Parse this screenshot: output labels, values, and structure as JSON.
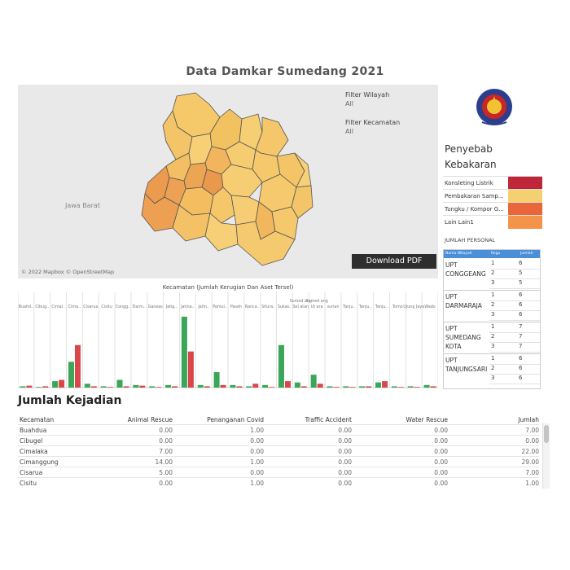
{
  "dashboard": {
    "title": "Data Damkar Sumedang 2021"
  },
  "map": {
    "region_label": "Jawa Barat",
    "attribution": "© 2022 Mapbox © OpenStreetMap",
    "filters": [
      {
        "label": "Filter Wilayah",
        "value": "All"
      },
      {
        "label": "Filter Kecamatan",
        "value": "All"
      }
    ],
    "download_label": "Download PDF"
  },
  "causes": {
    "title": "Penyebab Kebakaran",
    "items": [
      {
        "label": "Konsleting Listrik",
        "color": "#c0263a"
      },
      {
        "label": "Pembakaran Samp...",
        "color": "#f4d070"
      },
      {
        "label": "Tungku / Kompor G...",
        "color": "#e8663a"
      },
      {
        "label": "Lain Lain1",
        "color": "#f4934a"
      }
    ]
  },
  "personal": {
    "title": "JUMLAH PERSONAL",
    "headers": [
      "Nama Wilayah",
      "Regu",
      "Jumlah"
    ],
    "groups": [
      {
        "name": "UPT CONGGEANG",
        "rows": [
          [
            "1",
            "6"
          ],
          [
            "2",
            "5"
          ],
          [
            "3",
            "5"
          ]
        ]
      },
      {
        "name": "UPT DARMARAJA",
        "rows": [
          [
            "1",
            "6"
          ],
          [
            "2",
            "6"
          ],
          [
            "3",
            "6"
          ]
        ]
      },
      {
        "name": "UPT SUMEDANG KOTA",
        "rows": [
          [
            "1",
            "7"
          ],
          [
            "2",
            "7"
          ],
          [
            "3",
            "7"
          ]
        ]
      },
      {
        "name": "UPT TANJUNGSARI",
        "rows": [
          [
            "1",
            "6"
          ],
          [
            "2",
            "6"
          ],
          [
            "3",
            "6"
          ]
        ]
      }
    ]
  },
  "chart_data": {
    "type": "bar",
    "title": "Kecamatan (Jumlah Kerugian Dan Aset Tersel)",
    "categories": [
      "Buahd..",
      "Cibug..",
      "Cimal..",
      "Cima..",
      "Cisarua",
      "Cisitu",
      "Congg..",
      "Darm..",
      "Ganeas",
      "Jatig..",
      "Jatina..",
      "Jatin..",
      "Pamul..",
      "Paseh",
      "Ranca..",
      "Situra..",
      "Sukas..",
      "Sumed ang Sel atan",
      "Sumed ang Ut ara",
      "surian",
      "Tanju..",
      "Tanju..",
      "Tanju..",
      "Tomo",
      "Ujung Jaya",
      "Wado"
    ],
    "series": [
      {
        "color": "#3aa657",
        "values": [
          1,
          0.5,
          5,
          20,
          3,
          1,
          6,
          2,
          1,
          2,
          55,
          2,
          12,
          2,
          1,
          2,
          33,
          4,
          10,
          1,
          1,
          1,
          4,
          1,
          1,
          2
        ]
      },
      {
        "color": "#d9474a",
        "values": [
          1.5,
          1,
          6,
          33,
          1,
          0.5,
          1,
          1.5,
          0.5,
          1,
          28,
          1,
          2,
          1,
          3,
          0.5,
          5,
          1,
          3,
          0.5,
          0.5,
          1,
          5,
          0.5,
          0.5,
          1
        ]
      }
    ],
    "ylim": [
      0,
      60
    ],
    "grid": true
  },
  "jumlah": {
    "title": "Jumlah Kejadian",
    "columns": [
      "Kecamatan",
      "Animal Rescue",
      "Penanganan Covid",
      "Traffic Accident",
      "Water Rescue",
      "Jumlah"
    ],
    "rows": [
      [
        "Buahdua",
        "0.00",
        "1.00",
        "0.00",
        "0.00",
        "7.00"
      ],
      [
        "Cibugel",
        "0.00",
        "0.00",
        "0.00",
        "0.00",
        "0.00"
      ],
      [
        "Cimalaka",
        "7.00",
        "0.00",
        "0.00",
        "0.00",
        "22.00"
      ],
      [
        "Cimanggung",
        "14.00",
        "1.00",
        "0.00",
        "0.00",
        "29.00"
      ],
      [
        "Cisarua",
        "5.00",
        "0.00",
        "0.00",
        "0.00",
        "7.00"
      ],
      [
        "Cisitu",
        "0.00",
        "1.00",
        "0.00",
        "0.00",
        "1.00"
      ]
    ]
  }
}
